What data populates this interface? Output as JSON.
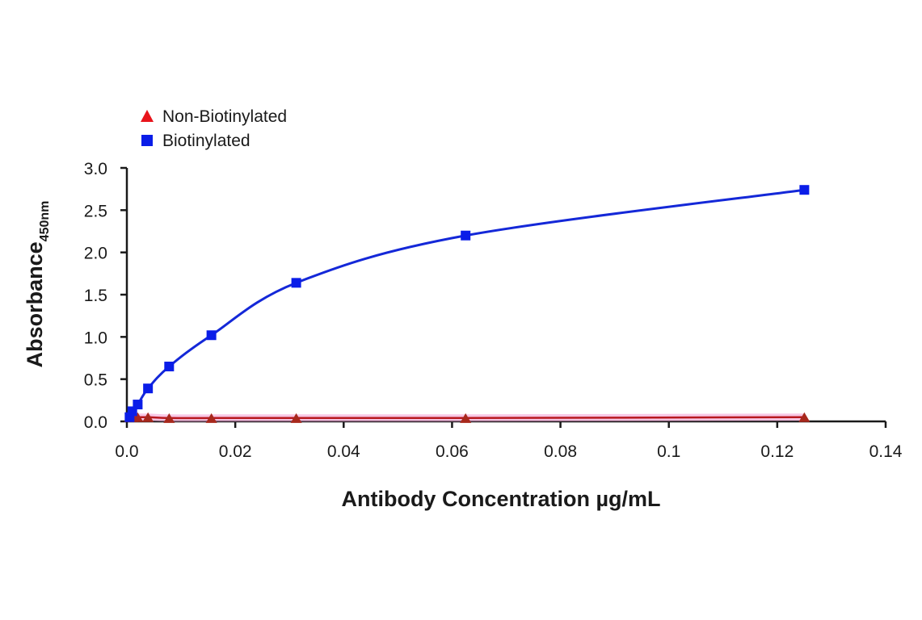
{
  "chart_data": {
    "type": "line",
    "title": "",
    "xlabel": "Antibody Concentration µg/mL",
    "ylabel": "Absorbance",
    "ylabel_subscript": "450nm",
    "xlim": [
      0,
      0.14
    ],
    "ylim": [
      0,
      3.0
    ],
    "x_ticks": [
      "0.0",
      "0.02",
      "0.04",
      "0.06",
      "0.08",
      "0.1",
      "0.12",
      "0.14"
    ],
    "x_tick_values": [
      0,
      0.02,
      0.04,
      0.06,
      0.08,
      0.1,
      0.12,
      0.14
    ],
    "y_ticks": [
      "0.0",
      "0.5",
      "1.0",
      "1.5",
      "2.0",
      "2.5",
      "3.0"
    ],
    "y_tick_values": [
      0,
      0.5,
      1.0,
      1.5,
      2.0,
      2.5,
      3.0
    ],
    "grid": false,
    "legend_position": "top-left",
    "series": [
      {
        "name": "Non-Biotinylated",
        "marker": "triangle",
        "color": "#e8141b",
        "line_color": "#b8181f",
        "x": [
          0.0005,
          0.001,
          0.002,
          0.0039,
          0.0078,
          0.0156,
          0.03125,
          0.0625,
          0.125
        ],
        "y": [
          0.05,
          0.05,
          0.05,
          0.05,
          0.04,
          0.04,
          0.04,
          0.04,
          0.05
        ]
      },
      {
        "name": "Biotinylated",
        "marker": "square",
        "color": "#0a1de8",
        "line_color": "#1428d8",
        "x": [
          0.0005,
          0.001,
          0.002,
          0.0039,
          0.0078,
          0.0156,
          0.03125,
          0.0625,
          0.125
        ],
        "y": [
          0.05,
          0.12,
          0.2,
          0.39,
          0.65,
          1.02,
          1.64,
          2.2,
          2.74
        ]
      }
    ]
  }
}
